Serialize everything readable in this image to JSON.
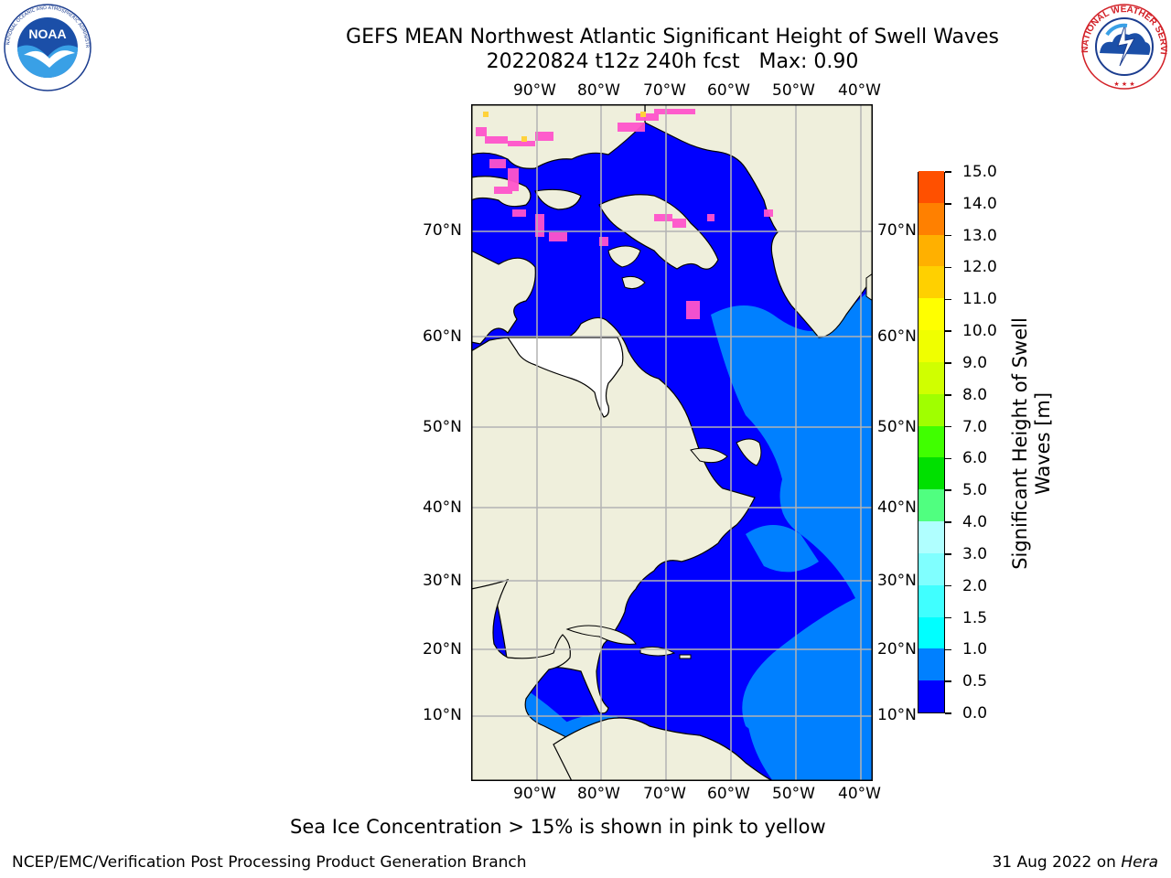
{
  "header": {
    "title_line1": "GEFS MEAN Northwest Atlantic Significant Height of Swell Waves",
    "title_line2": "20220824 t12z 240h fcst   Max: 0.90"
  },
  "logos": {
    "left": {
      "icon": "noaa-logo-icon",
      "text": "NOAA",
      "ring_text": "NATIONAL OCEANIC AND ATMOSPHERIC ADMINISTRATION · U.S. DEPARTMENT OF COMMERCE"
    },
    "right": {
      "icon": "nws-logo-icon",
      "ring_text": "NATIONAL WEATHER SERVICE"
    }
  },
  "map": {
    "lon_labels": [
      "90°W",
      "80°W",
      "70°W",
      "60°W",
      "50°W",
      "40°W"
    ],
    "lat_labels_left": [
      "70°N",
      "60°N",
      "50°N",
      "40°N",
      "30°N",
      "20°N",
      "10°N"
    ],
    "lat_labels_right": [
      "70°N",
      "60°N",
      "50°N",
      "40°N",
      "30°N",
      "20°N",
      "10°N"
    ],
    "colors": {
      "land": "#efefdc",
      "ocean_low": "#0000ff",
      "ocean_mid": "#0080ff",
      "sea_ice": "#ff55cc",
      "gridline": "#b3b3b3",
      "nodata": "#ffffff"
    }
  },
  "colorbar": {
    "label": "Significant Height of Swell\nWaves [m]",
    "label_line1": "Significant Height of Swell",
    "label_line2": "Waves [m]",
    "ticks": [
      "0.0",
      "0.5",
      "1.0",
      "1.5",
      "2.0",
      "3.0",
      "4.0",
      "5.0",
      "6.0",
      "7.0",
      "8.0",
      "9.0",
      "10.0",
      "11.0",
      "12.0",
      "13.0",
      "14.0",
      "15.0"
    ],
    "colors": [
      "#0000ff",
      "#0080ff",
      "#00ffff",
      "#40ffff",
      "#80ffff",
      "#b0ffff",
      "#50ff80",
      "#00e000",
      "#40ff00",
      "#a0ff00",
      "#d0ff00",
      "#f0ff00",
      "#ffff00",
      "#ffd000",
      "#ffb000",
      "#ff8000",
      "#ff5000",
      "#ff2000",
      "#ff0000"
    ]
  },
  "notes": {
    "sea_ice": "Sea Ice Concentration > 15% is shown in pink to yellow"
  },
  "footer": {
    "left": "NCEP/EMC/Verification Post Processing Product Generation Branch",
    "right_prefix": "31 Aug 2022 on ",
    "right_host": "Hera"
  }
}
